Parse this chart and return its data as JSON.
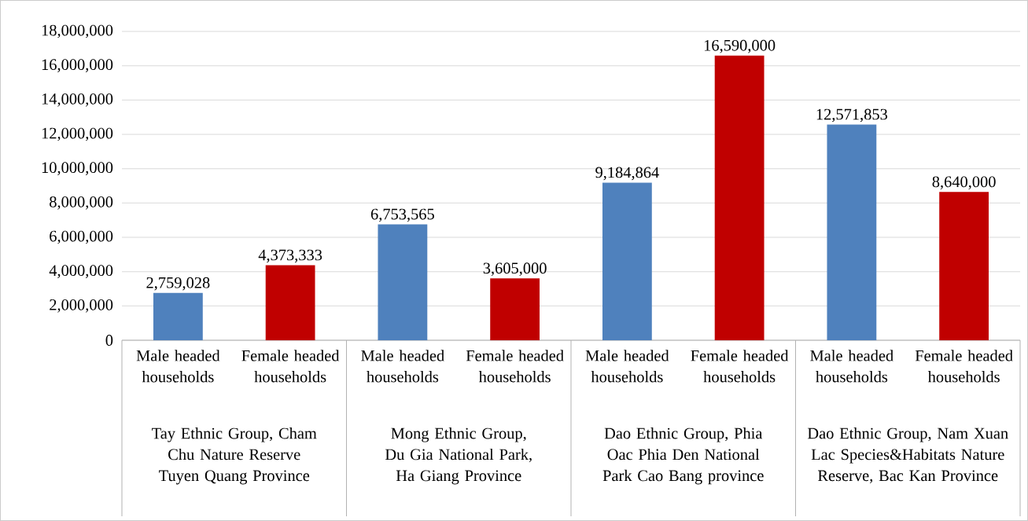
{
  "chart_data": {
    "type": "bar",
    "categories": [
      "Tay Ethnic Group, Cham Chu Nature Reserve Tuyen Quang Province",
      "Mong Ethnic Group, Du Gia National Park, Ha Giang Province",
      "Dao Ethnic Group, Phia Oac Phia Den National Park Cao Bang province",
      "Dao Ethnic Group, Nam Xuan Lac Species&Habitats Nature Reserve, Bac Kan Province"
    ],
    "series": [
      {
        "name": "Male headed households",
        "color": "#4f81bd",
        "values": [
          2759028,
          6753565,
          9184864,
          12571853
        ],
        "value_labels": [
          "2,759,028",
          "6,753,565",
          "9,184,864",
          "12,571,853"
        ]
      },
      {
        "name": "Female headed households",
        "color": "#c00000",
        "values": [
          4373333,
          3605000,
          16590000,
          8640000
        ],
        "value_labels": [
          "4,373,333",
          "3,605,000",
          "16,590,000",
          "8,640,000"
        ]
      }
    ],
    "ylim": [
      0,
      18000000
    ],
    "yticks": [
      {
        "value": 0,
        "label": "0"
      },
      {
        "value": 2000000,
        "label": "2,000,000"
      },
      {
        "value": 4000000,
        "label": "4,000,000"
      },
      {
        "value": 6000000,
        "label": "6,000,000"
      },
      {
        "value": 8000000,
        "label": "8,000,000"
      },
      {
        "value": 10000000,
        "label": "10,000,000"
      },
      {
        "value": 12000000,
        "label": "12,000,000"
      },
      {
        "value": 14000000,
        "label": "14,000,000"
      },
      {
        "value": 16000000,
        "label": "16,000,000"
      },
      {
        "value": 18000000,
        "label": "18,000,000"
      }
    ],
    "grid": "y"
  }
}
